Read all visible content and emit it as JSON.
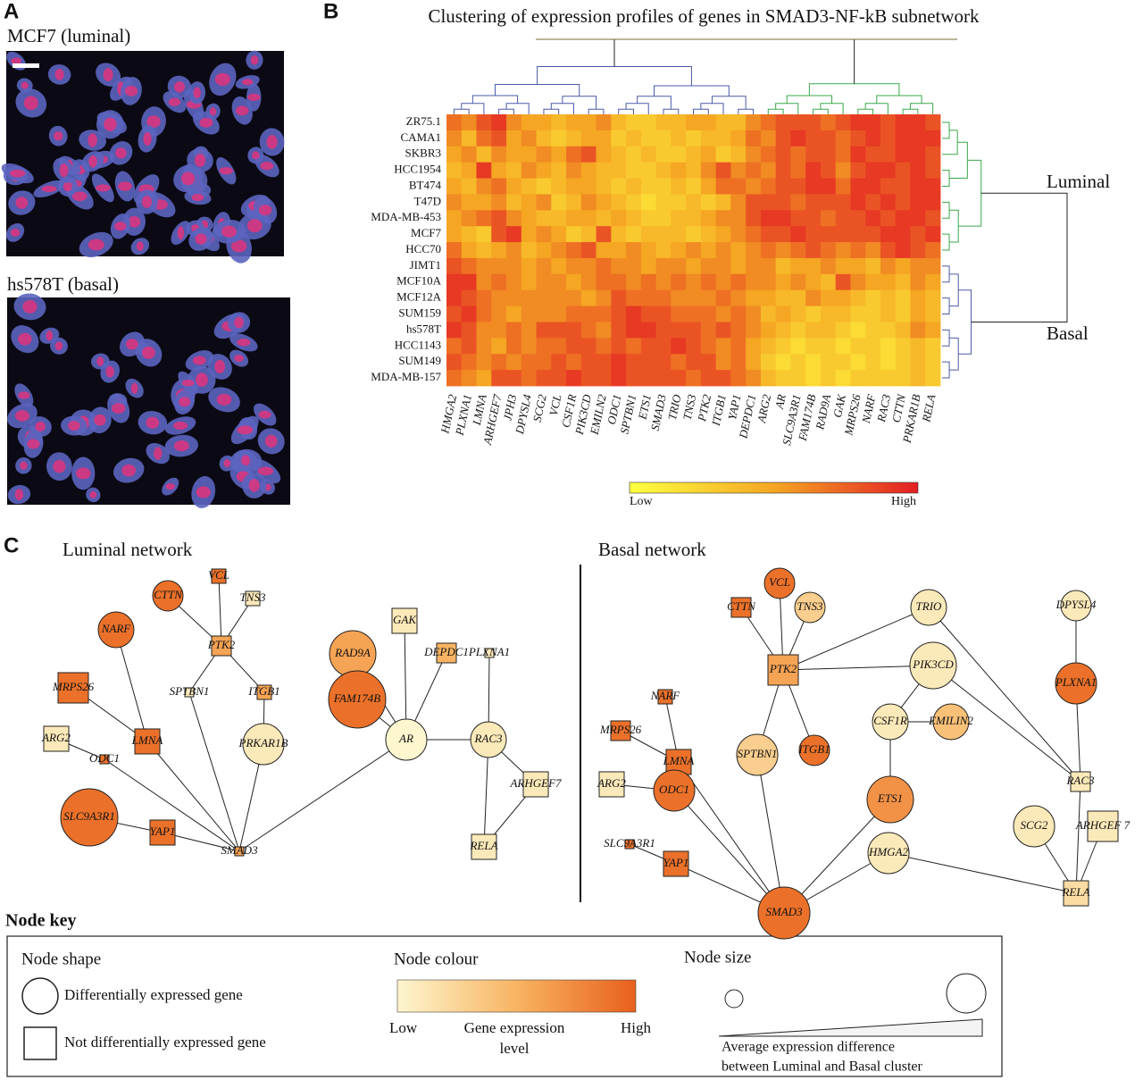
{
  "panel_a": {
    "label": "A",
    "images": [
      {
        "caption": "MCF7 (luminal)"
      },
      {
        "caption": "hs578T (basal)"
      }
    ]
  },
  "panel_b": {
    "label": "B",
    "title": "Clustering of expression profiles of genes in SMAD3-NF-kB subnetwork",
    "rows": [
      "ZR75.1",
      "CAMA1",
      "SKBR3",
      "HCC1954",
      "BT474",
      "T47D",
      "MDA-MB-453",
      "MCF7",
      "HCC70",
      "JIMT1",
      "MCF10A",
      "MCF12A",
      "SUM159",
      "hs578T",
      "HCC1143",
      "SUM149",
      "MDA-MB-157"
    ],
    "columns": [
      "HMGA2",
      "PLXNA1",
      "LMNA",
      "ARHGEF7",
      "JPH3",
      "DPYSL4",
      "SCG2",
      "VCL",
      "CSF1R",
      "PIK3CD",
      "EMILN2",
      "ODC1",
      "SPTBN1",
      "ETS1",
      "SMAD3",
      "TRIO",
      "TNS3",
      "PTK2",
      "ITGB1",
      "YAP1",
      "DEPDC1",
      "ARG2",
      "AR",
      "SLC9A3R1",
      "FAM174B",
      "RAD9A",
      "GAK",
      "MRPS26",
      "NARF",
      "RAC3",
      "CTTN",
      "PRKAR1B",
      "RELA"
    ],
    "values": [
      [
        7,
        6,
        8,
        9,
        6,
        5,
        5,
        4,
        5,
        5,
        6,
        4,
        3,
        3,
        4,
        4,
        5,
        5,
        4,
        4,
        6,
        7,
        8,
        8,
        8,
        7,
        8,
        9,
        9,
        8,
        9,
        9,
        8
      ],
      [
        6,
        4,
        7,
        8,
        5,
        6,
        4,
        3,
        4,
        5,
        5,
        3,
        4,
        3,
        3,
        4,
        3,
        4,
        4,
        5,
        7,
        6,
        8,
        9,
        8,
        8,
        7,
        8,
        9,
        8,
        9,
        9,
        9
      ],
      [
        5,
        6,
        4,
        6,
        5,
        5,
        6,
        5,
        7,
        8,
        5,
        4,
        3,
        4,
        3,
        3,
        4,
        5,
        3,
        4,
        6,
        7,
        8,
        7,
        8,
        8,
        7,
        9,
        8,
        8,
        9,
        9,
        8
      ],
      [
        4,
        5,
        9,
        5,
        4,
        6,
        5,
        4,
        6,
        5,
        4,
        4,
        3,
        3,
        4,
        5,
        4,
        6,
        8,
        6,
        7,
        6,
        8,
        7,
        9,
        8,
        6,
        8,
        9,
        9,
        8,
        9,
        8
      ],
      [
        5,
        4,
        6,
        7,
        5,
        4,
        3,
        4,
        5,
        5,
        4,
        3,
        4,
        3,
        3,
        4,
        3,
        5,
        7,
        7,
        6,
        7,
        8,
        8,
        9,
        9,
        7,
        9,
        9,
        8,
        8,
        9,
        9
      ],
      [
        6,
        5,
        5,
        6,
        4,
        5,
        6,
        3,
        4,
        6,
        5,
        4,
        3,
        2,
        3,
        3,
        4,
        3,
        4,
        6,
        8,
        8,
        8,
        7,
        8,
        8,
        8,
        9,
        8,
        9,
        8,
        9,
        9
      ],
      [
        5,
        6,
        7,
        8,
        6,
        5,
        4,
        4,
        5,
        5,
        4,
        5,
        4,
        3,
        3,
        4,
        4,
        5,
        6,
        6,
        8,
        9,
        9,
        8,
        8,
        7,
        8,
        8,
        9,
        8,
        9,
        9,
        8
      ],
      [
        5,
        4,
        3,
        8,
        9,
        5,
        6,
        5,
        3,
        4,
        8,
        4,
        3,
        4,
        4,
        4,
        3,
        4,
        5,
        6,
        7,
        8,
        8,
        9,
        8,
        8,
        8,
        8,
        8,
        9,
        9,
        8,
        9
      ],
      [
        7,
        5,
        4,
        5,
        6,
        4,
        5,
        6,
        7,
        8,
        5,
        5,
        6,
        5,
        4,
        5,
        6,
        5,
        6,
        5,
        6,
        7,
        6,
        7,
        8,
        7,
        6,
        7,
        6,
        8,
        9,
        8,
        7
      ],
      [
        8,
        7,
        6,
        6,
        6,
        5,
        6,
        5,
        6,
        6,
        7,
        6,
        6,
        5,
        6,
        6,
        5,
        6,
        6,
        5,
        6,
        6,
        4,
        5,
        5,
        6,
        5,
        5,
        4,
        6,
        5,
        6,
        6
      ],
      [
        9,
        9,
        6,
        7,
        6,
        5,
        6,
        6,
        5,
        6,
        7,
        7,
        6,
        7,
        6,
        7,
        6,
        7,
        6,
        7,
        6,
        6,
        5,
        6,
        5,
        4,
        8,
        6,
        5,
        5,
        4,
        6,
        5
      ],
      [
        9,
        8,
        7,
        6,
        6,
        6,
        6,
        6,
        6,
        5,
        6,
        8,
        7,
        7,
        7,
        6,
        6,
        6,
        7,
        6,
        5,
        5,
        4,
        4,
        6,
        5,
        5,
        4,
        3,
        4,
        3,
        5,
        4
      ],
      [
        8,
        9,
        7,
        6,
        5,
        6,
        6,
        6,
        7,
        7,
        7,
        8,
        9,
        8,
        8,
        7,
        7,
        7,
        6,
        7,
        6,
        4,
        5,
        4,
        3,
        4,
        4,
        3,
        3,
        4,
        3,
        5,
        4
      ],
      [
        9,
        8,
        6,
        6,
        7,
        6,
        8,
        8,
        8,
        7,
        6,
        8,
        9,
        9,
        8,
        8,
        8,
        7,
        8,
        7,
        6,
        5,
        4,
        3,
        4,
        4,
        3,
        2,
        3,
        3,
        4,
        6,
        5
      ],
      [
        7,
        8,
        6,
        5,
        7,
        6,
        7,
        7,
        8,
        8,
        7,
        8,
        7,
        8,
        8,
        9,
        8,
        7,
        6,
        7,
        5,
        4,
        3,
        2,
        3,
        3,
        2,
        3,
        3,
        2,
        3,
        4,
        3
      ],
      [
        8,
        7,
        6,
        7,
        6,
        7,
        7,
        8,
        7,
        8,
        8,
        9,
        8,
        8,
        8,
        7,
        8,
        8,
        6,
        7,
        5,
        3,
        2,
        3,
        2,
        3,
        3,
        2,
        3,
        2,
        3,
        4,
        3
      ],
      [
        7,
        6,
        5,
        8,
        8,
        7,
        8,
        8,
        9,
        8,
        8,
        9,
        8,
        8,
        8,
        8,
        7,
        8,
        8,
        7,
        6,
        4,
        3,
        3,
        2,
        3,
        2,
        3,
        3,
        3,
        3,
        4,
        3
      ]
    ],
    "value_range": [
      0,
      10
    ],
    "colorbar": {
      "low": "Low",
      "high": "High"
    },
    "row_groups": [
      "Luminal",
      "Basal"
    ]
  },
  "panel_c": {
    "label": "C",
    "level_range": [
      0,
      10
    ],
    "networks": [
      {
        "title": "Luminal network",
        "nodes": [
          {
            "label": "VCL",
            "shape": "square",
            "level": 9,
            "difference": 1
          },
          {
            "label": "CTTN",
            "shape": "circle",
            "level": 9,
            "difference": 4
          },
          {
            "label": "TNS3",
            "shape": "square",
            "level": 1,
            "difference": 1
          },
          {
            "label": "NARF",
            "shape": "circle",
            "level": 9,
            "difference": 5
          },
          {
            "label": "PTK2",
            "shape": "square",
            "level": 6,
            "difference": 2
          },
          {
            "label": "MRPS26",
            "shape": "square",
            "level": 9,
            "difference": 4
          },
          {
            "label": "SPTBN1",
            "shape": "square",
            "level": 1,
            "difference": 0
          },
          {
            "label": "ITGB1",
            "shape": "square",
            "level": 6,
            "difference": 1
          },
          {
            "label": "RAD9A",
            "shape": "circle",
            "level": 6,
            "difference": 7
          },
          {
            "label": "GAK",
            "shape": "square",
            "level": 1,
            "difference": 3
          },
          {
            "label": "DEPDC1",
            "shape": "square",
            "level": 5,
            "difference": 2
          },
          {
            "label": "PLXNA1",
            "shape": "square",
            "level": 1,
            "difference": 0
          },
          {
            "label": "FAM174B",
            "shape": "circle",
            "level": 9,
            "difference": 9
          },
          {
            "label": "ARG2",
            "shape": "square",
            "level": 1,
            "difference": 3
          },
          {
            "label": "LMNA",
            "shape": "square",
            "level": 9,
            "difference": 3
          },
          {
            "label": "ODC1",
            "shape": "square",
            "level": 9,
            "difference": 0
          },
          {
            "label": "PRKAR1B",
            "shape": "circle",
            "level": 1,
            "difference": 6
          },
          {
            "label": "AR",
            "shape": "circle",
            "level": 0,
            "difference": 6
          },
          {
            "label": "RAC3",
            "shape": "circle",
            "level": 1,
            "difference": 5
          },
          {
            "label": "ARHGEF7",
            "shape": "square",
            "level": 1,
            "difference": 3
          },
          {
            "label": "SLC9A3R1",
            "shape": "circle",
            "level": 9,
            "difference": 9
          },
          {
            "label": "YAP1",
            "shape": "square",
            "level": 9,
            "difference": 3
          },
          {
            "label": "SMAD3",
            "shape": "square",
            "level": 6,
            "difference": 0
          },
          {
            "label": "RELA",
            "shape": "square",
            "level": 1,
            "difference": 3
          }
        ]
      },
      {
        "title": "Basal network",
        "nodes": [
          {
            "label": "VCL",
            "shape": "circle",
            "level": 9,
            "difference": 4
          },
          {
            "label": "CTTN",
            "shape": "square",
            "level": 9,
            "difference": 2
          },
          {
            "label": "TNS3",
            "shape": "circle",
            "level": 3,
            "difference": 4
          },
          {
            "label": "TRIO",
            "shape": "circle",
            "level": 1,
            "difference": 5
          },
          {
            "label": "DPYSL4",
            "shape": "circle",
            "level": 1,
            "difference": 4
          },
          {
            "label": "NARF",
            "shape": "square",
            "level": 9,
            "difference": 1
          },
          {
            "label": "PTK2",
            "shape": "square",
            "level": 6,
            "difference": 4
          },
          {
            "label": "PIK3CD",
            "shape": "circle",
            "level": 1,
            "difference": 7
          },
          {
            "label": "PLXNA1",
            "shape": "circle",
            "level": 9,
            "difference": 6
          },
          {
            "label": "MRPS26",
            "shape": "square",
            "level": 9,
            "difference": 2
          },
          {
            "label": "LMNA",
            "shape": "square",
            "level": 9,
            "difference": 3
          },
          {
            "label": "CSF1R",
            "shape": "circle",
            "level": 1,
            "difference": 5
          },
          {
            "label": "EMILIN2",
            "shape": "circle",
            "level": 4,
            "difference": 5
          },
          {
            "label": "SPTBN1",
            "shape": "circle",
            "level": 3,
            "difference": 6
          },
          {
            "label": "ITGB1",
            "shape": "circle",
            "level": 9,
            "difference": 4
          },
          {
            "label": "ARG2",
            "shape": "square",
            "level": 1,
            "difference": 3
          },
          {
            "label": "RAC3",
            "shape": "square",
            "level": 1,
            "difference": 2
          },
          {
            "label": "ODC1",
            "shape": "circle",
            "level": 9,
            "difference": 6
          },
          {
            "label": "ETS1",
            "shape": "circle",
            "level": 7,
            "difference": 7
          },
          {
            "label": "SLC9A3R1",
            "shape": "square",
            "level": 9,
            "difference": 0
          },
          {
            "label": "SCG2",
            "shape": "circle",
            "level": 1,
            "difference": 6
          },
          {
            "label": "ARHGEF 7",
            "shape": "square",
            "level": 1,
            "difference": 4
          },
          {
            "label": "HMGA2",
            "shape": "circle",
            "level": 1,
            "difference": 6
          },
          {
            "label": "YAP1",
            "shape": "square",
            "level": 9,
            "difference": 3
          },
          {
            "label": "SMAD3",
            "shape": "circle",
            "level": 9,
            "difference": 8
          },
          {
            "label": "RELA",
            "shape": "square",
            "level": 2,
            "difference": 3
          }
        ]
      }
    ],
    "key": {
      "title": "Node key",
      "shape_title": "Node shape",
      "circle_label": "Differentially expressed gene",
      "square_label": "Not differentially expressed gene",
      "colour_title": "Node colour",
      "low": "Low",
      "high": "High",
      "colour_caption": [
        "Gene expression",
        "level"
      ],
      "size_title": "Node size",
      "size_caption": [
        "Average expression difference",
        "between Luminal and Basal cluster"
      ]
    }
  }
}
